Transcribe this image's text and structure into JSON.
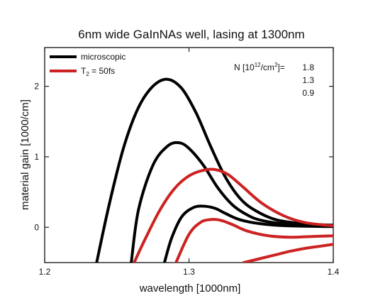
{
  "chart_data": {
    "type": "line",
    "title": "6nm wide GaInNAs well, lasing at 1300nm",
    "xlabel": "wavelength  [1000nm]",
    "ylabel": "material gain  [1000/cm]",
    "xlim": [
      1.2,
      1.4
    ],
    "ylim": [
      -0.5,
      2.55
    ],
    "xticks": [
      "1.2",
      "1.3",
      "1.4"
    ],
    "yticks": [
      "0",
      "1",
      "2"
    ],
    "legend": {
      "placement": "top-left",
      "entries": [
        {
          "label": "microscopic",
          "color": "#000000"
        },
        {
          "label_main": "T",
          "label_sub": "2",
          "label_rest": " = 50fs",
          "color": "#cc2222"
        }
      ]
    },
    "density_annotation": {
      "prefix": "N [10",
      "exp": "12",
      "suffix": "/cm",
      "exp2": "2",
      "tail": "]=",
      "values": [
        "1.8",
        "1.3",
        "0.9"
      ]
    },
    "series": [
      {
        "name": "microscopic",
        "density": "1.8",
        "color": "#000000",
        "x": [
          1.236,
          1.245,
          1.255,
          1.265,
          1.275,
          1.285,
          1.295,
          1.305,
          1.315,
          1.325,
          1.335,
          1.345,
          1.36,
          1.38,
          1.4
        ],
        "y": [
          -0.5,
          0.35,
          1.15,
          1.7,
          2.0,
          2.1,
          1.97,
          1.62,
          1.15,
          0.72,
          0.42,
          0.25,
          0.11,
          0.05,
          0.03
        ]
      },
      {
        "name": "microscopic",
        "density": "1.3",
        "color": "#000000",
        "x": [
          1.26,
          1.265,
          1.275,
          1.285,
          1.293,
          1.3,
          1.31,
          1.32,
          1.33,
          1.34,
          1.35,
          1.37,
          1.4
        ],
        "y": [
          -0.5,
          0.25,
          0.88,
          1.15,
          1.2,
          1.12,
          0.88,
          0.56,
          0.32,
          0.18,
          0.1,
          0.04,
          0.02
        ]
      },
      {
        "name": "microscopic",
        "density": "0.9",
        "color": "#000000",
        "x": [
          1.283,
          1.288,
          1.295,
          1.303,
          1.31,
          1.318,
          1.325,
          1.335,
          1.35,
          1.37,
          1.4
        ],
        "y": [
          -0.5,
          -0.15,
          0.15,
          0.28,
          0.3,
          0.27,
          0.2,
          0.11,
          0.05,
          0.02,
          0.01
        ]
      },
      {
        "name": "T2 = 50fs",
        "density": "1.8",
        "color": "#cc2222",
        "x": [
          1.262,
          1.27,
          1.28,
          1.29,
          1.3,
          1.31,
          1.318,
          1.327,
          1.337,
          1.35,
          1.365,
          1.38,
          1.4
        ],
        "y": [
          -0.5,
          -0.15,
          0.25,
          0.55,
          0.73,
          0.81,
          0.82,
          0.75,
          0.58,
          0.35,
          0.17,
          0.07,
          0.02
        ]
      },
      {
        "name": "T2 = 50fs",
        "density": "1.3",
        "color": "#cc2222",
        "x": [
          1.291,
          1.3,
          1.308,
          1.315,
          1.322,
          1.33,
          1.34,
          1.355,
          1.37,
          1.385,
          1.4
        ],
        "y": [
          -0.5,
          -0.1,
          0.07,
          0.11,
          0.1,
          0.04,
          -0.05,
          -0.12,
          -0.14,
          -0.13,
          -0.12
        ]
      },
      {
        "name": "T2 = 50fs",
        "density": "0.9",
        "color": "#cc2222",
        "x": [
          1.338,
          1.35,
          1.36,
          1.37,
          1.38,
          1.39,
          1.4
        ],
        "y": [
          -0.5,
          -0.44,
          -0.39,
          -0.34,
          -0.3,
          -0.27,
          -0.24
        ]
      }
    ]
  }
}
